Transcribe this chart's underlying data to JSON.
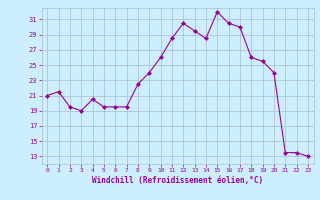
{
  "x": [
    0,
    1,
    2,
    3,
    4,
    5,
    6,
    7,
    8,
    9,
    10,
    11,
    12,
    13,
    14,
    15,
    16,
    17,
    18,
    19,
    20,
    21,
    22,
    23
  ],
  "y": [
    21,
    21.5,
    19.5,
    19,
    20.5,
    19.5,
    19.5,
    19.5,
    22.5,
    24,
    26,
    28.5,
    30.5,
    29.5,
    28.5,
    32,
    30.5,
    30,
    26,
    25.5,
    24,
    13.5,
    13.5,
    13
  ],
  "color": "#990099",
  "bg_color": "#cceeff",
  "grid_color": "#aabbcc",
  "xlabel": "Windchill (Refroidissement éolien,°C)",
  "yticks": [
    13,
    15,
    17,
    19,
    21,
    23,
    25,
    27,
    29,
    31
  ],
  "xticks": [
    0,
    1,
    2,
    3,
    4,
    5,
    6,
    7,
    8,
    9,
    10,
    11,
    12,
    13,
    14,
    15,
    16,
    17,
    18,
    19,
    20,
    21,
    22,
    23
  ],
  "ylim": [
    12.0,
    32.5
  ],
  "xlim": [
    -0.5,
    23.5
  ]
}
